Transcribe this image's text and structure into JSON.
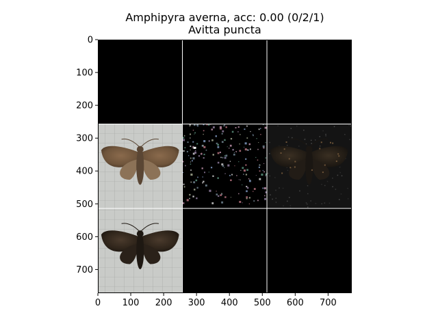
{
  "chart_data": {
    "type": "image-grid",
    "title": [
      "Amphipyra averna, acc: 0.00 (0/2/1)",
      "Avitta puncta"
    ],
    "xlabel": "",
    "ylabel": "",
    "xlim": [
      0,
      772
    ],
    "ylim": [
      772,
      0
    ],
    "x_ticks": [
      0,
      100,
      200,
      300,
      400,
      500,
      600,
      700
    ],
    "y_ticks": [
      0,
      100,
      200,
      300,
      400,
      500,
      600,
      700
    ],
    "grid_rows": 3,
    "grid_cols": 3,
    "tile_size": 257,
    "grid_line_color": "#ffffff",
    "tiles": [
      {
        "row": 0,
        "col": 0,
        "content": "blank-black"
      },
      {
        "row": 0,
        "col": 1,
        "content": "blank-black"
      },
      {
        "row": 0,
        "col": 2,
        "content": "blank-black"
      },
      {
        "row": 1,
        "col": 0,
        "content": "moth-photo-brown-light-background"
      },
      {
        "row": 1,
        "col": 1,
        "content": "sparse-noise-saliency"
      },
      {
        "row": 1,
        "col": 2,
        "content": "dim-moth-overlay"
      },
      {
        "row": 2,
        "col": 0,
        "content": "moth-photo-dark-light-background"
      },
      {
        "row": 2,
        "col": 1,
        "content": "blank-black"
      },
      {
        "row": 2,
        "col": 2,
        "content": "blank-black"
      }
    ]
  }
}
